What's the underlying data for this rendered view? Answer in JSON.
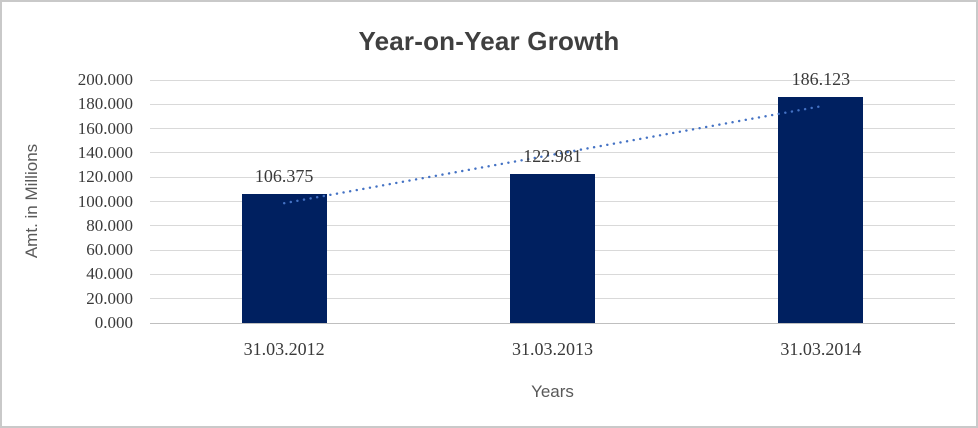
{
  "chart_data": {
    "type": "bar",
    "title": "Year-on-Year Growth",
    "xlabel": "Years",
    "ylabel": "Amt. in Millions",
    "categories": [
      "31.03.2012",
      "31.03.2013",
      "31.03.2014"
    ],
    "values": [
      106.375,
      122.981,
      186.123
    ],
    "data_labels": [
      "106.375",
      "122.981",
      "186.123"
    ],
    "ylim": [
      0,
      200
    ],
    "ytick_step": 20,
    "yticks": [
      {
        "value": 0,
        "label": "0.000"
      },
      {
        "value": 20,
        "label": "20.000"
      },
      {
        "value": 40,
        "label": "40.000"
      },
      {
        "value": 60,
        "label": "60.000"
      },
      {
        "value": 80,
        "label": "80.000"
      },
      {
        "value": 100,
        "label": "100.000"
      },
      {
        "value": 120,
        "label": "120.000"
      },
      {
        "value": 140,
        "label": "140.000"
      },
      {
        "value": 160,
        "label": "160.000"
      },
      {
        "value": 180,
        "label": "180.000"
      },
      {
        "value": 200,
        "label": "200.000"
      }
    ],
    "grid": "horizontal",
    "legend": "none",
    "trendline": {
      "type": "linear",
      "style": "dotted"
    },
    "colors": {
      "bar": "#002060",
      "trendline": "#4472C4",
      "gridline": "#D9D9D9",
      "axis_line": "#BFBFBF",
      "title_text": "#3F3F3F",
      "tick_text": "#3A3A3A",
      "axis_title_text": "#595959",
      "frame_border": "#C9C9C9",
      "background": "#FFFFFF"
    }
  }
}
